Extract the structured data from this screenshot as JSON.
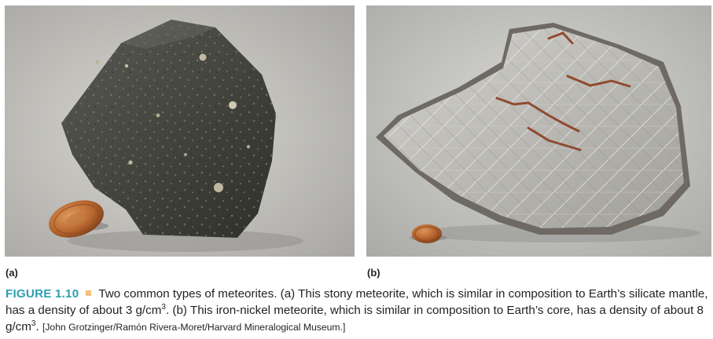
{
  "panels": {
    "a": {
      "label": "(a)"
    },
    "b": {
      "label": "(b)"
    }
  },
  "caption": {
    "figure_number": "FIGURE 1.10",
    "text_1": "Two common types of meteorites. (a) This stony meteorite, which is similar in composition to Earth’s silicate mantle, has a density of about 3 g/cm",
    "sup_1": "3",
    "text_2": ". (b) This iron-nickel meteorite, which is similar in composition to Earth’s core, has a density of about 8 g/cm",
    "sup_2": "3",
    "text_3": ".",
    "credit": "[John Grotzinger/Ramón Rivera-Moret/Harvard Mineralogical Museum.]"
  },
  "colors": {
    "figure_number": "#2e9fb0",
    "separator": "#f4c27a",
    "text": "#231f20"
  }
}
